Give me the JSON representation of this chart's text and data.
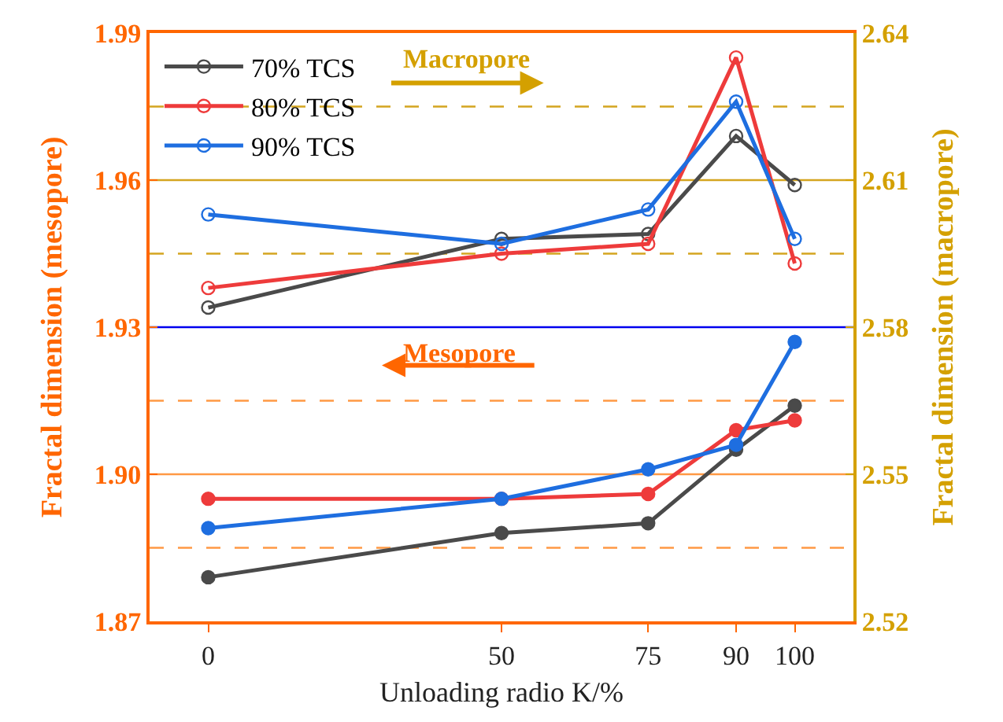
{
  "chart_data": {
    "type": "line",
    "xlabel": "Unloading radio K/%",
    "ylabel": "Fractal dimension (mesopore)",
    "y2label": "Fractal dimension (macropore)",
    "x": [
      0,
      50,
      75,
      90,
      100
    ],
    "xlim": [
      -10,
      110
    ],
    "xticks": [
      0,
      50,
      75,
      90,
      100
    ],
    "ylim": [
      1.87,
      1.99
    ],
    "yticks": [
      1.87,
      {
        "value": 1.9,
        "label": "1.90"
      },
      1.93,
      1.96,
      1.99
    ],
    "y2lim": [
      2.52,
      2.64
    ],
    "y2ticks": [
      2.52,
      2.55,
      2.58,
      2.61,
      2.64
    ],
    "marker": "circle",
    "legend": "top left",
    "grid": false,
    "series": [
      {
        "name": "70% TCS",
        "color": "#4a4a4a",
        "axis": "y2",
        "values": [
          2.584,
          2.598,
          2.599,
          2.619,
          2.609
        ]
      },
      {
        "name": "80% TCS",
        "color": "#ee3b3b",
        "axis": "y2",
        "values": [
          2.588,
          2.595,
          2.597,
          2.635,
          2.593
        ]
      },
      {
        "name": "90% TCS",
        "color": "#1e6ee0",
        "axis": "y2",
        "values": [
          2.603,
          2.597,
          2.604,
          2.626,
          2.598
        ]
      },
      {
        "color": "#4a4a4a",
        "axis": "y",
        "values": [
          1.879,
          1.888,
          1.89,
          1.905,
          1.914
        ]
      },
      {
        "color": "#ee3b3b",
        "axis": "y",
        "values": [
          1.895,
          1.895,
          1.896,
          1.909,
          1.911
        ]
      },
      {
        "color": "#1e6ee0",
        "axis": "y",
        "values": [
          1.889,
          1.895,
          1.901,
          1.906,
          1.927
        ]
      }
    ],
    "ref_lines": [
      {
        "axis": "y",
        "value": 1.93,
        "color": "#0000ee",
        "line_style": "solid"
      },
      {
        "axis": "y",
        "value": 1.9,
        "color": "#ff9944",
        "line_style": "solid"
      },
      {
        "axis": "y",
        "value": 1.915,
        "color": "#ff9944",
        "line_style": "dashed"
      },
      {
        "axis": "y",
        "value": 1.885,
        "color": "#ff9944",
        "line_style": "dashed"
      },
      {
        "axis": "y2",
        "value": 2.61,
        "color": "#d4a520",
        "line_style": "solid"
      },
      {
        "axis": "y2",
        "value": 2.625,
        "color": "#d4a520",
        "line_style": "dashed"
      },
      {
        "axis": "y2",
        "value": 2.595,
        "color": "#d4a520",
        "line_style": "dashed"
      }
    ],
    "annotations": [
      "Macropore",
      "Mesopore"
    ]
  }
}
